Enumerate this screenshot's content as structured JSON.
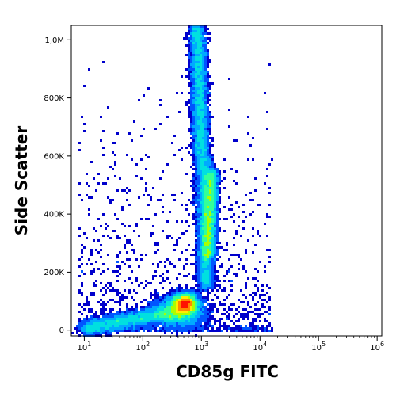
{
  "chart_data": {
    "type": "scatter",
    "subtype": "flow-cytometry density dot plot",
    "xlabel": "CD85g FITC",
    "ylabel": "Side Scatter",
    "x_scale": "log",
    "xlim": [
      6,
      1200000
    ],
    "ylim": [
      -20000,
      1050000
    ],
    "x_ticks": [
      {
        "value": 10,
        "base": "10",
        "exp": "1"
      },
      {
        "value": 100,
        "base": "10",
        "exp": "2"
      },
      {
        "value": 1000,
        "base": "10",
        "exp": "3"
      },
      {
        "value": 10000,
        "base": "10",
        "exp": "4"
      },
      {
        "value": 100000,
        "base": "10",
        "exp": "5"
      },
      {
        "value": 1000000,
        "base": "10",
        "exp": "6"
      }
    ],
    "y_ticks": [
      {
        "value": 0,
        "label": "0"
      },
      {
        "value": 200000,
        "label": "200K"
      },
      {
        "value": 400000,
        "label": "400K"
      },
      {
        "value": 600000,
        "label": "600K"
      },
      {
        "value": 800000,
        "label": "800K"
      },
      {
        "value": 1000000,
        "label": "1,0M"
      }
    ],
    "populations": [
      {
        "name": "",
        "center_x": 500,
        "center_y": 90000,
        "peak_density": "red",
        "shape": "dense cluster"
      },
      {
        "name": "",
        "center_x": 1000,
        "center_y": 750000,
        "peak_density": "cyan",
        "shape": "vertical band"
      },
      {
        "name": "",
        "center_x": 1200,
        "center_y": 450000,
        "peak_density": "cyan",
        "shape": "vertical band"
      },
      {
        "name": "",
        "center_x": 60,
        "center_y": 20000,
        "peak_density": "green",
        "shape": "diagonal tail"
      }
    ],
    "density_colormap": [
      "#0000cc",
      "#0055ff",
      "#00aaff",
      "#00e0e0",
      "#33ff99",
      "#aaff00",
      "#ffee00",
      "#ff8800",
      "#ff1100"
    ],
    "grid": false,
    "legend": "none"
  }
}
